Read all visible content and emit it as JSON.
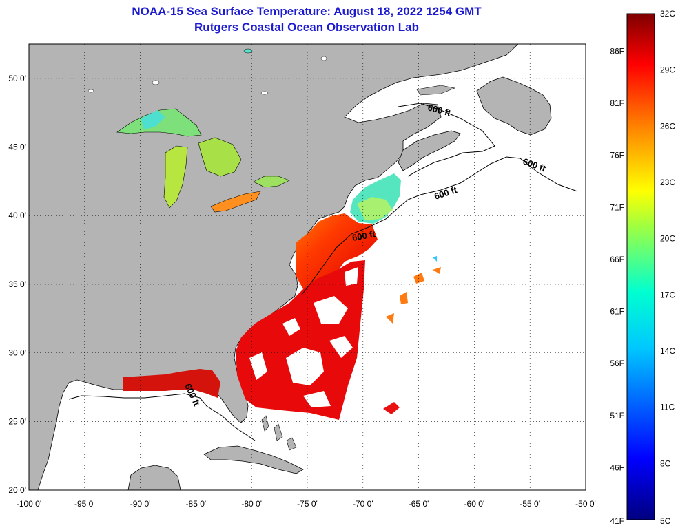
{
  "header": {
    "title": "NOAA-15 Sea Surface Temperature:  August 18, 2022 1254 GMT",
    "subtitle": "Rutgers Coastal Ocean Observation Lab"
  },
  "map": {
    "lon_range": [
      -100,
      -50
    ],
    "lat_range": [
      20,
      52.5
    ],
    "lon_ticks": [
      -100,
      -95,
      -90,
      -85,
      -80,
      -75,
      -70,
      -65,
      -60,
      -55,
      -50
    ],
    "lon_tick_labels": [
      "-100 0'",
      "-95 0'",
      "-90 0'",
      "-85 0'",
      "-80 0'",
      "-75 0'",
      "-70 0'",
      "-65 0'",
      "-60 0'",
      "-55 0'",
      "-50 0'"
    ],
    "lat_ticks": [
      20,
      25,
      30,
      35,
      40,
      45,
      50
    ],
    "lat_tick_labels": [
      "20 0'",
      "25 0'",
      "30 0'",
      "35 0'",
      "40 0'",
      "45 0'",
      "50 0'"
    ],
    "grid": true,
    "contour_label": "600 ft",
    "colors": {
      "land": "#b4b4b4",
      "ocean_nodata": "#ffffff",
      "coastline": "#000000"
    }
  },
  "colorbar": {
    "range_c": [
      5,
      32
    ],
    "celsius_labels": [
      "32C",
      "29C",
      "26C",
      "23C",
      "20C",
      "17C",
      "14C",
      "11C",
      "8C",
      "5C"
    ],
    "fahrenheit_labels": [
      "86F",
      "81F",
      "76F",
      "71F",
      "66F",
      "61F",
      "56F",
      "51F",
      "46F",
      "41F"
    ],
    "colormap": [
      "#00007f",
      "#0000ff",
      "#007fff",
      "#00ffff",
      "#7fff7f",
      "#ffff00",
      "#ff7f00",
      "#ff0000",
      "#7f0000"
    ]
  }
}
